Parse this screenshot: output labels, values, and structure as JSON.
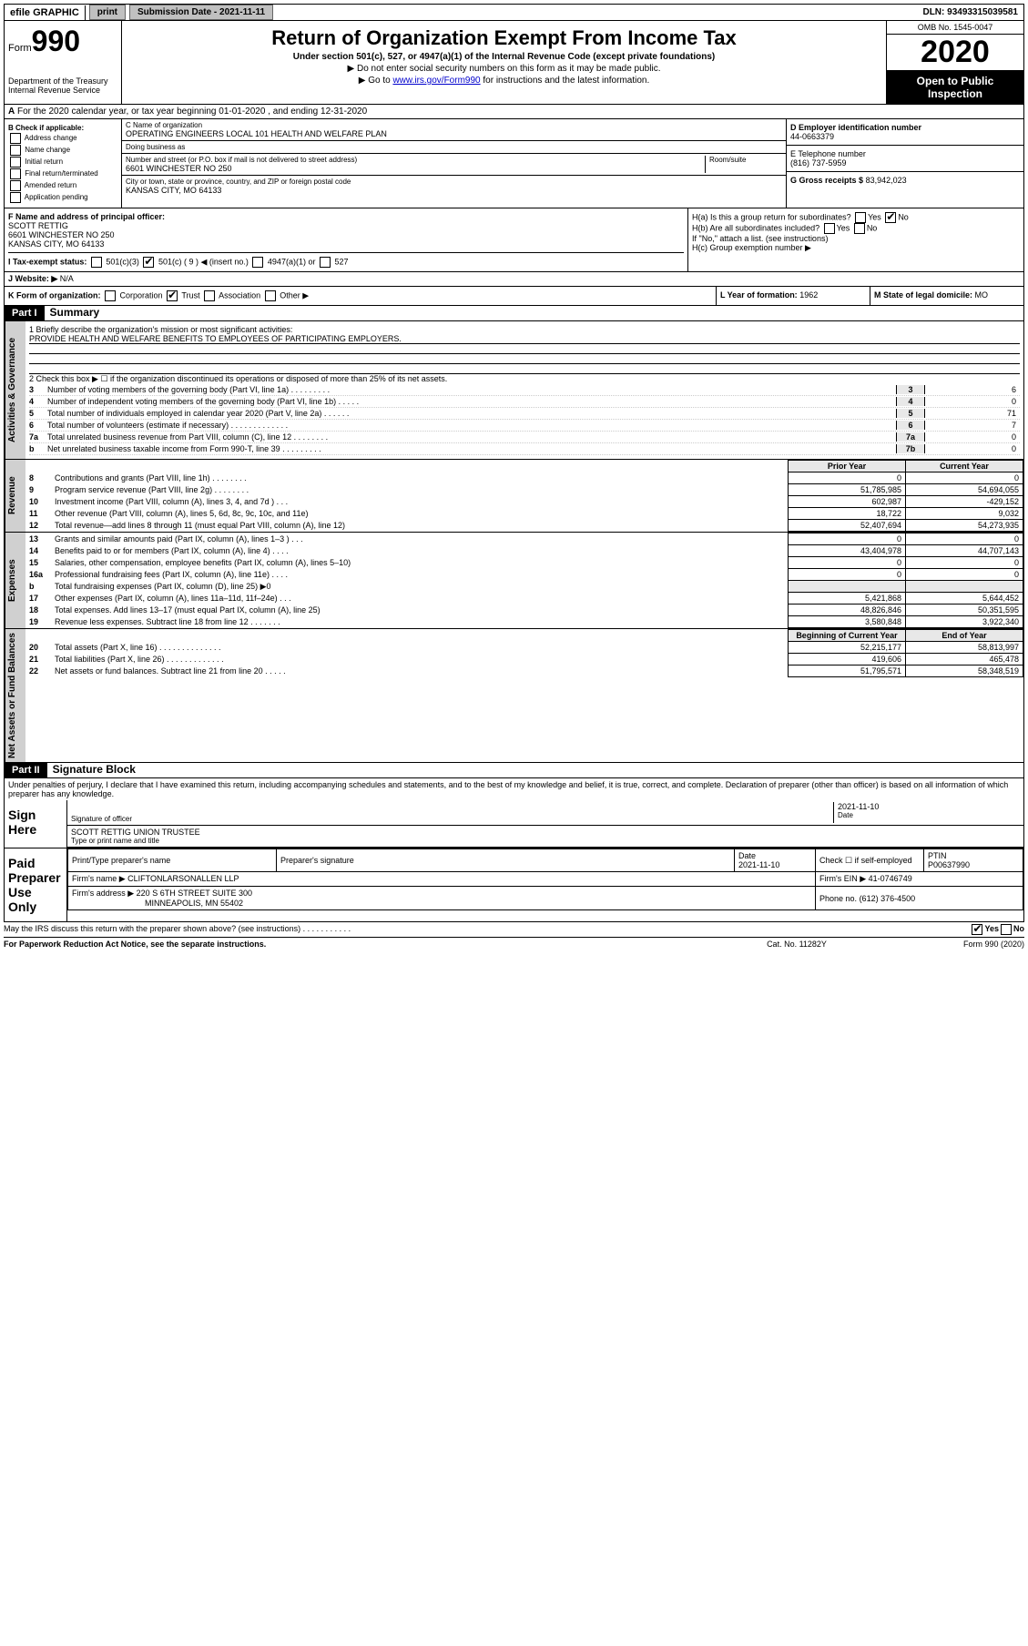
{
  "colors": {
    "black": "#000000",
    "white": "#ffffff",
    "gray_btn": "#c0c0c0",
    "gray_side": "#d0d0d0",
    "gray_cell": "#e8e8e8",
    "link": "#0000cc"
  },
  "topbar": {
    "efile": "efile GRAPHIC",
    "print": "print",
    "submission": "Submission Date - 2021-11-11",
    "dln": "DLN: 93493315039581"
  },
  "header": {
    "form_prefix": "Form",
    "form_number": "990",
    "dept1": "Department of the Treasury",
    "dept2": "Internal Revenue Service",
    "title": "Return of Organization Exempt From Income Tax",
    "subtitle": "Under section 501(c), 527, or 4947(a)(1) of the Internal Revenue Code (except private foundations)",
    "note1": "▶ Do not enter social security numbers on this form as it may be made public.",
    "note2_pre": "▶ Go to ",
    "note2_link": "www.irs.gov/Form990",
    "note2_post": " for instructions and the latest information.",
    "omb": "OMB No. 1545-0047",
    "year": "2020",
    "open": "Open to Public Inspection"
  },
  "sectionA": "For the 2020 calendar year, or tax year beginning 01-01-2020   , and ending 12-31-2020",
  "boxB": {
    "label": "B Check if applicable:",
    "items": [
      "Address change",
      "Name change",
      "Initial return",
      "Final return/terminated",
      "Amended return",
      "Application pending"
    ]
  },
  "boxC": {
    "name_label": "C Name of organization",
    "name": "OPERATING ENGINEERS LOCAL 101 HEALTH AND WELFARE PLAN",
    "dba_label": "Doing business as",
    "street_label": "Number and street (or P.O. box if mail is not delivered to street address)",
    "room_label": "Room/suite",
    "street": "6601 WINCHESTER NO 250",
    "city_label": "City or town, state or province, country, and ZIP or foreign postal code",
    "city": "KANSAS CITY, MO  64133"
  },
  "boxD": {
    "label": "D Employer identification number",
    "ein": "44-0663379"
  },
  "boxE": {
    "label": "E Telephone number",
    "phone": "(816) 737-5959"
  },
  "boxG": {
    "label": "G Gross receipts $",
    "amount": "83,942,023"
  },
  "boxF": {
    "label": "F  Name and address of principal officer:",
    "name": "SCOTT RETTIG",
    "addr1": "6601 WINCHESTER NO 250",
    "addr2": "KANSAS CITY, MO  64133"
  },
  "boxH": {
    "a": "H(a)  Is this a group return for subordinates?",
    "b": "H(b)  Are all subordinates included?",
    "b_note": "If \"No,\" attach a list. (see instructions)",
    "c": "H(c)  Group exemption number ▶",
    "yes": "Yes",
    "no": "No"
  },
  "boxI": {
    "label": "I   Tax-exempt status:",
    "opts": [
      "501(c)(3)",
      "501(c) ( 9 ) ◀ (insert no.)",
      "4947(a)(1) or",
      "527"
    ]
  },
  "boxJ": {
    "label": "J   Website: ▶",
    "value": "N/A"
  },
  "boxK": {
    "label": "K Form of organization:",
    "opts": [
      "Corporation",
      "Trust",
      "Association",
      "Other ▶"
    ]
  },
  "boxL": {
    "label": "L Year of formation:",
    "value": "1962"
  },
  "boxM": {
    "label": "M State of legal domicile:",
    "value": "MO"
  },
  "part1": {
    "header": "Part I",
    "title": "Summary"
  },
  "governance": {
    "side": "Activities & Governance",
    "l1": "1  Briefly describe the organization's mission or most significant activities:",
    "l1v": "PROVIDE HEALTH AND WELFARE BENEFITS TO EMPLOYEES OF PARTICIPATING EMPLOYERS.",
    "l2": "2   Check this box ▶ ☐  if the organization discontinued its operations or disposed of more than 25% of its net assets.",
    "rows": [
      {
        "n": "3",
        "t": "Number of voting members of the governing body (Part VI, line 1a)  .    .    .    .    .    .    .    .    .",
        "b": "3",
        "v": "6"
      },
      {
        "n": "4",
        "t": "Number of independent voting members of the governing body (Part VI, line 1b)  .    .    .    .    .",
        "b": "4",
        "v": "0"
      },
      {
        "n": "5",
        "t": "Total number of individuals employed in calendar year 2020 (Part V, line 2a)  .    .    .    .    .    .",
        "b": "5",
        "v": "71"
      },
      {
        "n": "6",
        "t": "Total number of volunteers (estimate if necessary)  .    .    .    .    .    .    .    .    .    .    .    .    .",
        "b": "6",
        "v": "7"
      },
      {
        "n": "7a",
        "t": "Total unrelated business revenue from Part VIII, column (C), line 12  .    .    .    .    .    .    .    .",
        "b": "7a",
        "v": "0"
      },
      {
        "n": "b",
        "t": "Net unrelated business taxable income from Form 990-T, line 39  .    .    .    .    .    .    .    .    .",
        "b": "7b",
        "v": "0"
      }
    ]
  },
  "revenue": {
    "side": "Revenue",
    "head_prior": "Prior Year",
    "head_current": "Current Year",
    "rows": [
      {
        "n": "8",
        "t": "Contributions and grants (Part VIII, line 1h)  .    .    .    .    .    .    .    .",
        "p": "0",
        "c": "0"
      },
      {
        "n": "9",
        "t": "Program service revenue (Part VIII, line 2g)  .    .    .    .    .    .    .    .",
        "p": "51,785,985",
        "c": "54,694,055"
      },
      {
        "n": "10",
        "t": "Investment income (Part VIII, column (A), lines 3, 4, and 7d )  .    .    .",
        "p": "602,987",
        "c": "-429,152"
      },
      {
        "n": "11",
        "t": "Other revenue (Part VIII, column (A), lines 5, 6d, 8c, 9c, 10c, and 11e)",
        "p": "18,722",
        "c": "9,032"
      },
      {
        "n": "12",
        "t": "Total revenue—add lines 8 through 11 (must equal Part VIII, column (A), line 12)",
        "p": "52,407,694",
        "c": "54,273,935"
      }
    ]
  },
  "expenses": {
    "side": "Expenses",
    "rows": [
      {
        "n": "13",
        "t": "Grants and similar amounts paid (Part IX, column (A), lines 1–3 )  .    .    .",
        "p": "0",
        "c": "0"
      },
      {
        "n": "14",
        "t": "Benefits paid to or for members (Part IX, column (A), line 4)  .    .    .    .",
        "p": "43,404,978",
        "c": "44,707,143"
      },
      {
        "n": "15",
        "t": "Salaries, other compensation, employee benefits (Part IX, column (A), lines 5–10)",
        "p": "0",
        "c": "0"
      },
      {
        "n": "16a",
        "t": "Professional fundraising fees (Part IX, column (A), line 11e)  .    .    .    .",
        "p": "0",
        "c": "0"
      },
      {
        "n": "b",
        "t": "Total fundraising expenses (Part IX, column (D), line 25) ▶0",
        "p": "",
        "c": ""
      },
      {
        "n": "17",
        "t": "Other expenses (Part IX, column (A), lines 11a–11d, 11f–24e)  .    .    .",
        "p": "5,421,868",
        "c": "5,644,452"
      },
      {
        "n": "18",
        "t": "Total expenses. Add lines 13–17 (must equal Part IX, column (A), line 25)",
        "p": "48,826,846",
        "c": "50,351,595"
      },
      {
        "n": "19",
        "t": "Revenue less expenses. Subtract line 18 from line 12  .    .    .    .    .    .    .",
        "p": "3,580,848",
        "c": "3,922,340"
      }
    ]
  },
  "netassets": {
    "side": "Net Assets or Fund Balances",
    "head_prior": "Beginning of Current Year",
    "head_current": "End of Year",
    "rows": [
      {
        "n": "20",
        "t": "Total assets (Part X, line 16)  .    .    .    .    .    .    .    .    .    .    .    .    .    .",
        "p": "52,215,177",
        "c": "58,813,997"
      },
      {
        "n": "21",
        "t": "Total liabilities (Part X, line 26)  .    .    .    .    .    .    .    .    .    .    .    .    .",
        "p": "419,606",
        "c": "465,478"
      },
      {
        "n": "22",
        "t": "Net assets or fund balances. Subtract line 21 from line 20  .    .    .    .    .",
        "p": "51,795,571",
        "c": "58,348,519"
      }
    ]
  },
  "part2": {
    "header": "Part II",
    "title": "Signature Block",
    "perjury": "Under penalties of perjury, I declare that I have examined this return, including accompanying schedules and statements, and to the best of my knowledge and belief, it is true, correct, and complete. Declaration of preparer (other than officer) is based on all information of which preparer has any knowledge."
  },
  "sign": {
    "label": "Sign Here",
    "sig_officer": "Signature of officer",
    "date": "2021-11-10",
    "date_label": "Date",
    "name": "SCOTT RETTIG  UNION TRUSTEE",
    "name_label": "Type or print name and title"
  },
  "preparer": {
    "label": "Paid Preparer Use Only",
    "print_label": "Print/Type preparer's name",
    "sig_label": "Preparer's signature",
    "date_label": "Date",
    "date": "2021-11-10",
    "check_label": "Check ☐ if self-employed",
    "ptin_label": "PTIN",
    "ptin": "P00637990",
    "firm_name_label": "Firm's name    ▶",
    "firm_name": "CLIFTONLARSONALLEN LLP",
    "firm_ein_label": "Firm's EIN ▶",
    "firm_ein": "41-0746749",
    "firm_addr_label": "Firm's address ▶",
    "firm_addr1": "220 S 6TH STREET SUITE 300",
    "firm_addr2": "MINNEAPOLIS, MN  55402",
    "phone_label": "Phone no.",
    "phone": "(612) 376-4500"
  },
  "footer": {
    "discuss": "May the IRS discuss this return with the preparer shown above? (see instructions)  .    .    .    .    .    .    .    .    .    .    .",
    "yes": "Yes",
    "no": "No",
    "paperwork": "For Paperwork Reduction Act Notice, see the separate instructions.",
    "cat": "Cat. No. 11282Y",
    "form": "Form 990 (2020)"
  }
}
